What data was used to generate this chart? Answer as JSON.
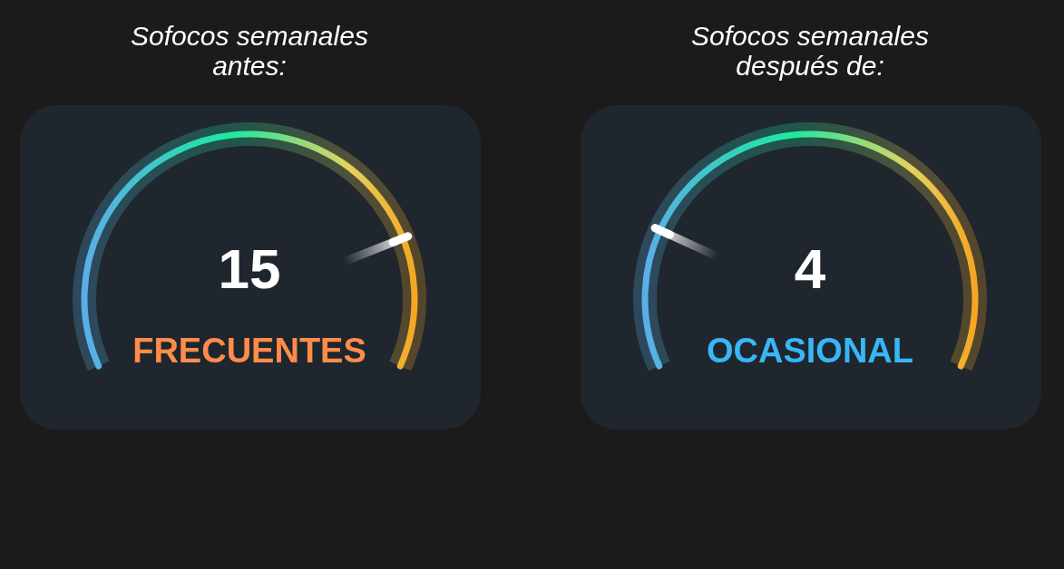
{
  "chart_data": [
    {
      "type": "other",
      "title": "Sofocos semanales antes:",
      "values": [
        15
      ],
      "value_labels": [
        "15"
      ],
      "categories": [
        "FRECUENTES"
      ]
    },
    {
      "type": "other",
      "title": "Sofocos semanales después de:",
      "values": [
        4
      ],
      "value_labels": [
        "4"
      ],
      "categories": [
        "OCASIONAL"
      ]
    }
  ]
}
